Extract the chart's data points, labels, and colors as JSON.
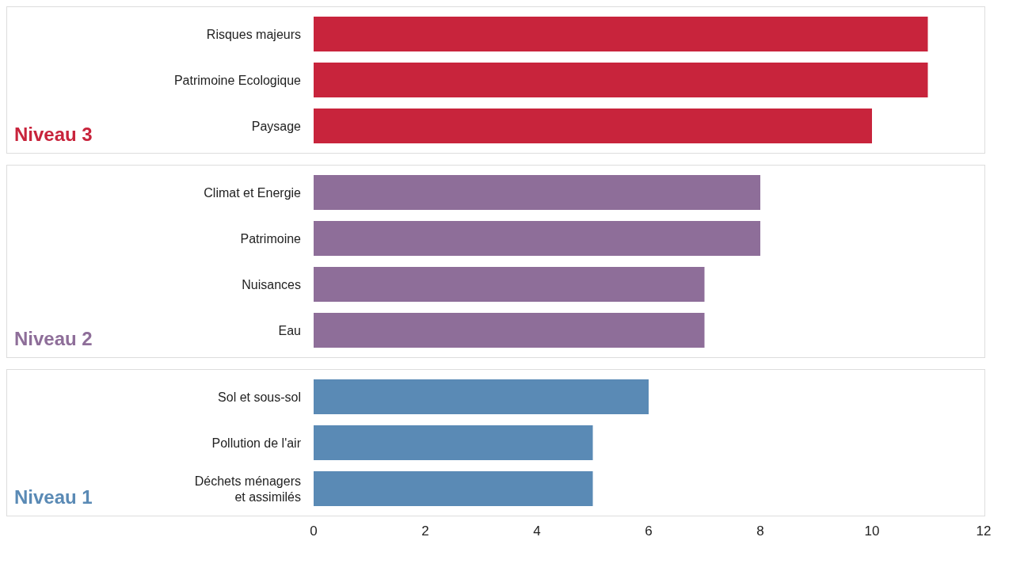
{
  "chart_data": [
    {
      "type": "bar",
      "orientation": "horizontal",
      "title": "Niveau 3",
      "categories": [
        "Risques majeurs",
        "Patrimoine Ecologique",
        "Paysage"
      ],
      "series": [
        {
          "color": "#c8243c",
          "values": [
            11,
            11,
            10
          ]
        }
      ],
      "xlim": [
        0,
        12
      ],
      "xticks": [
        0,
        2,
        4,
        6,
        8,
        10,
        12
      ],
      "tick_labels": "y"
    },
    {
      "type": "bar",
      "orientation": "horizontal",
      "title": "Niveau 2",
      "categories": [
        "Climat et Energie",
        "Patrimoine",
        "Nuisances",
        "Eau"
      ],
      "series": [
        {
          "color": "#8e6e99",
          "values": [
            8,
            8,
            7,
            7
          ]
        }
      ],
      "xlim": [
        0,
        12
      ],
      "xticks": [
        0,
        2,
        4,
        6,
        8,
        10,
        12
      ],
      "tick_labels": "y"
    },
    {
      "type": "bar",
      "orientation": "horizontal",
      "title": "Niveau 1",
      "categories": [
        "Sol et sous-sol",
        "Pollution de l'air",
        "Déchets ménagers\net assimilés"
      ],
      "series": [
        {
          "color": "#5a8ab5",
          "values": [
            6,
            5,
            5
          ]
        }
      ],
      "xlim": [
        0,
        12
      ],
      "xticks": [
        0,
        2,
        4,
        6,
        8,
        10,
        12
      ]
    }
  ]
}
